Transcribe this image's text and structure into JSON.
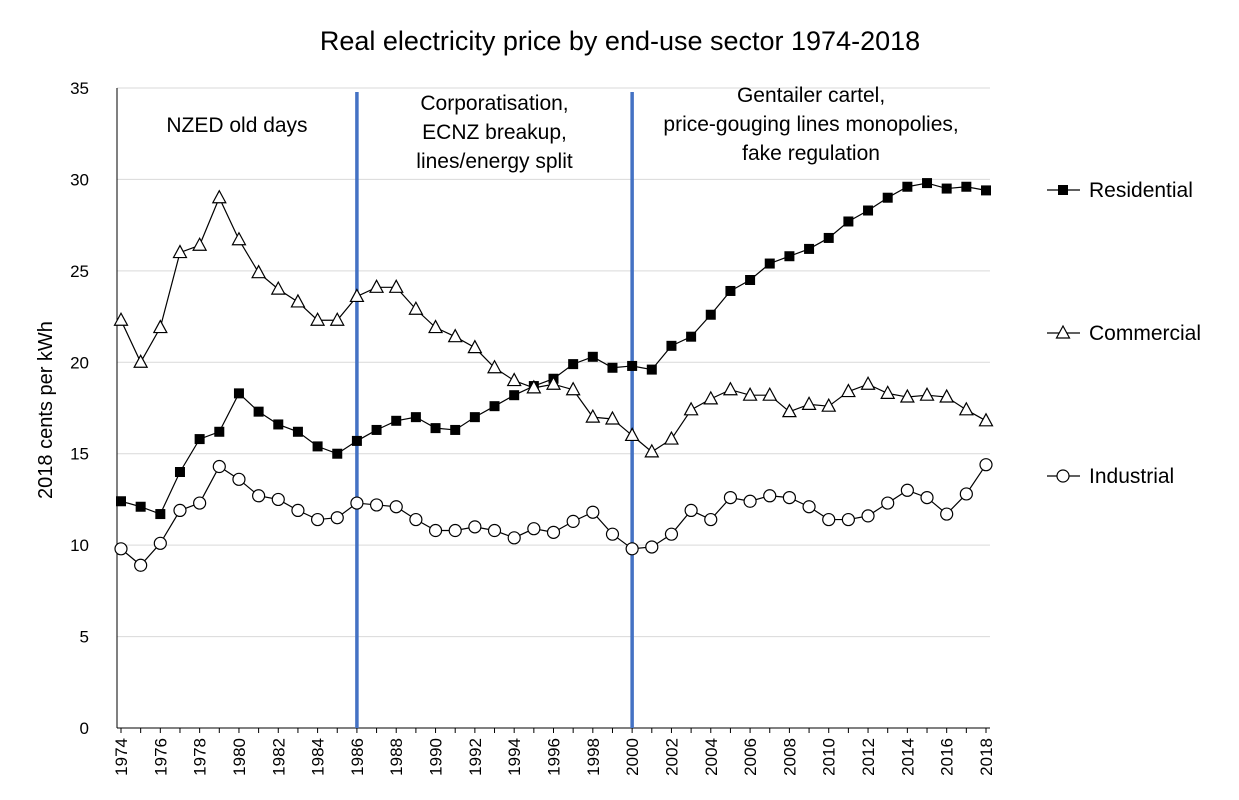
{
  "chart_data": {
    "type": "line",
    "title": "Real electricity price by end-use sector 1974-2018",
    "ylabel": "2018 cents per kWh",
    "xlabel": "",
    "ylim": [
      0,
      35
    ],
    "yticks": [
      0,
      5,
      10,
      15,
      20,
      25,
      30,
      35
    ],
    "xlim": [
      1974,
      2018
    ],
    "xticks": [
      1974,
      1976,
      1978,
      1980,
      1982,
      1984,
      1986,
      1988,
      1990,
      1992,
      1994,
      1996,
      1998,
      2000,
      2002,
      2004,
      2006,
      2008,
      2010,
      2012,
      2014,
      2016,
      2018
    ],
    "grid": "horizontal",
    "legend_position": "right",
    "x": [
      1974,
      1975,
      1976,
      1977,
      1978,
      1979,
      1980,
      1981,
      1982,
      1983,
      1984,
      1985,
      1986,
      1987,
      1988,
      1989,
      1990,
      1991,
      1992,
      1993,
      1994,
      1995,
      1996,
      1997,
      1998,
      1999,
      2000,
      2001,
      2002,
      2003,
      2004,
      2005,
      2006,
      2007,
      2008,
      2009,
      2010,
      2011,
      2012,
      2013,
      2014,
      2015,
      2016,
      2017,
      2018
    ],
    "series": [
      {
        "name": "Residential",
        "marker": "filled-square",
        "values": [
          12.4,
          12.1,
          11.7,
          14.0,
          15.8,
          16.2,
          18.3,
          17.3,
          16.6,
          16.2,
          15.4,
          15.0,
          15.7,
          16.3,
          16.8,
          17.0,
          16.4,
          16.3,
          17.0,
          17.6,
          18.2,
          18.7,
          19.1,
          19.9,
          20.3,
          19.7,
          19.8,
          19.6,
          20.9,
          21.4,
          22.6,
          23.9,
          24.5,
          25.4,
          25.8,
          26.2,
          26.8,
          27.7,
          28.3,
          29.0,
          29.6,
          29.8,
          29.5,
          29.6,
          29.4
        ]
      },
      {
        "name": "Commercial",
        "marker": "hollow-triangle",
        "values": [
          22.3,
          20.0,
          21.9,
          26.0,
          26.4,
          29.0,
          26.7,
          24.9,
          24.0,
          23.3,
          22.3,
          22.3,
          23.6,
          24.1,
          24.1,
          22.9,
          21.9,
          21.4,
          20.8,
          19.7,
          19.0,
          18.6,
          18.8,
          18.5,
          17.0,
          16.9,
          16.0,
          15.1,
          15.8,
          17.4,
          18.0,
          18.5,
          18.2,
          18.2,
          17.3,
          17.7,
          17.6,
          18.4,
          18.8,
          18.3,
          18.1,
          18.2,
          18.1,
          17.4,
          16.8
        ]
      },
      {
        "name": "Industrial",
        "marker": "hollow-circle",
        "values": [
          9.8,
          8.9,
          10.1,
          11.9,
          12.3,
          14.3,
          13.6,
          12.7,
          12.5,
          11.9,
          11.4,
          11.5,
          12.3,
          12.2,
          12.1,
          11.4,
          10.8,
          10.8,
          11.0,
          10.8,
          10.4,
          10.9,
          10.7,
          11.3,
          11.8,
          10.6,
          9.8,
          9.9,
          10.6,
          11.9,
          11.4,
          12.6,
          12.4,
          12.7,
          12.6,
          12.1,
          11.4,
          11.4,
          11.6,
          12.3,
          13.0,
          12.6,
          11.7,
          12.8,
          14.4
        ]
      }
    ],
    "period_dividers": [
      1986,
      2000
    ],
    "annotations": [
      {
        "lines": [
          "NZED old days"
        ]
      },
      {
        "lines": [
          "Corporatisation,",
          "ECNZ breakup,",
          "lines/energy split"
        ]
      },
      {
        "lines": [
          "Gentailer cartel,",
          "price-gouging lines monopolies,",
          "fake regulation"
        ]
      }
    ],
    "colors": {
      "series": "#000000",
      "divider": "#4472c4",
      "grid": "#d9d9d9"
    }
  }
}
